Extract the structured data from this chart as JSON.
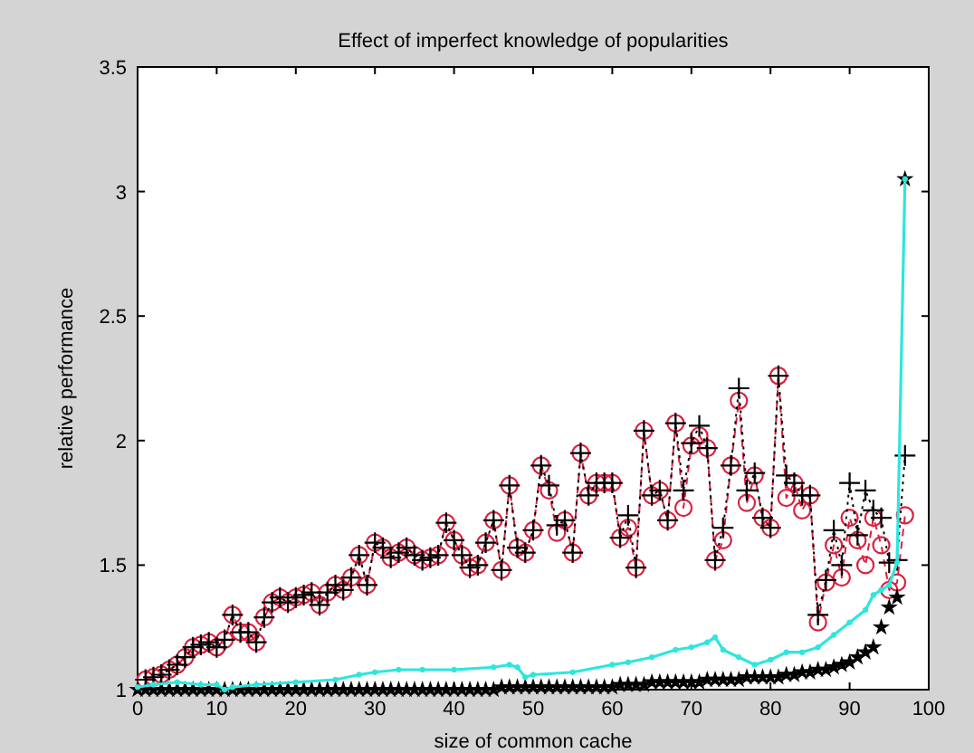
{
  "chart_data": {
    "type": "line",
    "title": "Effect of imperfect knowledge of popularities",
    "xlabel": "size of common cache",
    "ylabel": "relative performance",
    "xlim": [
      0,
      100
    ],
    "ylim": [
      1,
      3.5
    ],
    "xticks": [
      0,
      10,
      20,
      30,
      40,
      50,
      60,
      70,
      80,
      90,
      100
    ],
    "yticks": [
      1,
      1.5,
      2,
      2.5,
      3,
      3.5
    ],
    "x": [
      1,
      2,
      3,
      4,
      5,
      6,
      7,
      8,
      9,
      10,
      11,
      12,
      13,
      14,
      15,
      16,
      17,
      18,
      19,
      20,
      21,
      22,
      23,
      24,
      25,
      26,
      27,
      28,
      29,
      30,
      31,
      32,
      33,
      34,
      35,
      36,
      37,
      38,
      39,
      40,
      41,
      42,
      43,
      44,
      45,
      46,
      47,
      48,
      49,
      50,
      51,
      52,
      53,
      54,
      55,
      56,
      57,
      58,
      59,
      60,
      61,
      62,
      63,
      64,
      65,
      66,
      67,
      68,
      69,
      70,
      71,
      72,
      73,
      74,
      75,
      76,
      77,
      78,
      79,
      80,
      81,
      82,
      83,
      84,
      85,
      86,
      87,
      88,
      89,
      90,
      91,
      92,
      93,
      94,
      95,
      96,
      97
    ],
    "series": [
      {
        "color": "#d9213f",
        "marker": "circle",
        "line_style": "dashed",
        "values": [
          1.04,
          1.05,
          1.06,
          1.08,
          1.1,
          1.13,
          1.17,
          1.18,
          1.19,
          1.17,
          1.2,
          1.3,
          1.23,
          1.23,
          1.19,
          1.29,
          1.35,
          1.37,
          1.35,
          1.37,
          1.38,
          1.39,
          1.34,
          1.39,
          1.42,
          1.4,
          1.45,
          1.54,
          1.42,
          1.59,
          1.57,
          1.53,
          1.55,
          1.57,
          1.54,
          1.52,
          1.53,
          1.54,
          1.67,
          1.6,
          1.54,
          1.49,
          1.5,
          1.59,
          1.68,
          1.48,
          1.82,
          1.57,
          1.55,
          1.64,
          1.9,
          1.8,
          1.63,
          1.68,
          1.55,
          1.95,
          1.78,
          1.83,
          1.83,
          1.83,
          1.61,
          1.65,
          1.49,
          2.04,
          1.78,
          1.8,
          1.68,
          2.07,
          1.73,
          1.98,
          2.02,
          1.97,
          1.52,
          1.6,
          1.9,
          2.16,
          1.75,
          1.86,
          1.69,
          1.65,
          2.26,
          1.77,
          1.83,
          1.72,
          1.78,
          1.27,
          1.43,
          1.58,
          1.45,
          1.69,
          1.6,
          1.5,
          1.69,
          1.58,
          1.4,
          1.43,
          1.7
        ]
      },
      {
        "color": "#000000",
        "marker": "cross",
        "line_style": "dotted",
        "values": [
          1.04,
          1.05,
          1.06,
          1.08,
          1.1,
          1.13,
          1.17,
          1.18,
          1.19,
          1.17,
          1.2,
          1.3,
          1.23,
          1.23,
          1.19,
          1.29,
          1.35,
          1.37,
          1.35,
          1.37,
          1.38,
          1.39,
          1.34,
          1.39,
          1.42,
          1.4,
          1.45,
          1.54,
          1.42,
          1.59,
          1.57,
          1.53,
          1.55,
          1.57,
          1.54,
          1.52,
          1.53,
          1.54,
          1.67,
          1.6,
          1.54,
          1.49,
          1.5,
          1.59,
          1.68,
          1.48,
          1.82,
          1.57,
          1.55,
          1.64,
          1.9,
          1.82,
          1.66,
          1.68,
          1.55,
          1.95,
          1.78,
          1.83,
          1.83,
          1.83,
          1.61,
          1.7,
          1.49,
          2.04,
          1.78,
          1.8,
          1.68,
          2.07,
          1.8,
          1.99,
          2.06,
          1.97,
          1.52,
          1.65,
          1.9,
          2.21,
          1.8,
          1.87,
          1.69,
          1.65,
          2.26,
          1.86,
          1.83,
          1.78,
          1.78,
          1.3,
          1.44,
          1.64,
          1.5,
          1.83,
          1.62,
          1.8,
          1.72,
          1.69,
          1.51,
          1.52,
          1.94
        ]
      },
      {
        "color": "#2ee6dc",
        "marker": "circle",
        "line_style": "solid",
        "x": [
          0,
          2,
          5,
          8,
          10,
          11,
          12,
          15,
          20,
          25,
          28,
          30,
          33,
          36,
          40,
          45,
          47,
          48,
          49,
          50,
          55,
          60,
          62,
          65,
          68,
          70,
          72,
          73,
          74,
          76,
          78,
          80,
          82,
          84,
          86,
          88,
          90,
          92,
          93,
          94,
          95,
          96,
          97
        ],
        "values": [
          1.01,
          1.02,
          1.03,
          1.02,
          1.02,
          1.0,
          1.01,
          1.02,
          1.03,
          1.04,
          1.06,
          1.07,
          1.08,
          1.08,
          1.08,
          1.09,
          1.1,
          1.09,
          1.05,
          1.06,
          1.07,
          1.1,
          1.11,
          1.13,
          1.16,
          1.17,
          1.19,
          1.21,
          1.16,
          1.13,
          1.1,
          1.12,
          1.15,
          1.15,
          1.17,
          1.22,
          1.27,
          1.32,
          1.38,
          1.4,
          1.42,
          1.51,
          3.05
        ]
      },
      {
        "type": "scatter",
        "color": "#000000",
        "marker": "star",
        "x": [
          0,
          1,
          2,
          3,
          4,
          5,
          6,
          7,
          8,
          9,
          10,
          11,
          12,
          13,
          14,
          15,
          16,
          17,
          18,
          19,
          20,
          21,
          22,
          23,
          24,
          25,
          26,
          27,
          28,
          29,
          30,
          31,
          32,
          33,
          34,
          35,
          36,
          37,
          38,
          39,
          40,
          41,
          42,
          43,
          44,
          45,
          46,
          47,
          48,
          49,
          50,
          51,
          52,
          53,
          54,
          55,
          56,
          57,
          58,
          59,
          60,
          61,
          62,
          63,
          64,
          65,
          66,
          67,
          68,
          69,
          70,
          71,
          72,
          73,
          74,
          75,
          76,
          77,
          78,
          79,
          80,
          81,
          82,
          83,
          84,
          85,
          86,
          87,
          88,
          89,
          90,
          91,
          92,
          93,
          94,
          95,
          96,
          97
        ],
        "values": [
          1.0,
          1.0,
          1.0,
          1.0,
          1.0,
          1.0,
          1.0,
          1.0,
          1.0,
          1.0,
          1.0,
          1.0,
          1.0,
          1.0,
          1.0,
          1.0,
          1.0,
          1.0,
          1.0,
          1.0,
          1.0,
          1.0,
          1.0,
          1.0,
          1.0,
          1.0,
          1.0,
          1.0,
          1.0,
          1.0,
          1.0,
          1.0,
          1.0,
          1.0,
          1.0,
          1.0,
          1.0,
          1.0,
          1.0,
          1.0,
          1.0,
          1.0,
          1.0,
          1.0,
          1.0,
          1.0,
          1.01,
          1.01,
          1.01,
          1.01,
          1.01,
          1.01,
          1.01,
          1.01,
          1.01,
          1.01,
          1.01,
          1.01,
          1.01,
          1.01,
          1.01,
          1.02,
          1.02,
          1.02,
          1.02,
          1.03,
          1.03,
          1.03,
          1.03,
          1.03,
          1.03,
          1.03,
          1.04,
          1.04,
          1.04,
          1.04,
          1.04,
          1.05,
          1.05,
          1.05,
          1.05,
          1.05,
          1.06,
          1.06,
          1.07,
          1.07,
          1.08,
          1.08,
          1.09,
          1.1,
          1.11,
          1.13,
          1.15,
          1.17,
          1.25,
          1.33,
          1.37,
          3.05
        ]
      }
    ]
  }
}
